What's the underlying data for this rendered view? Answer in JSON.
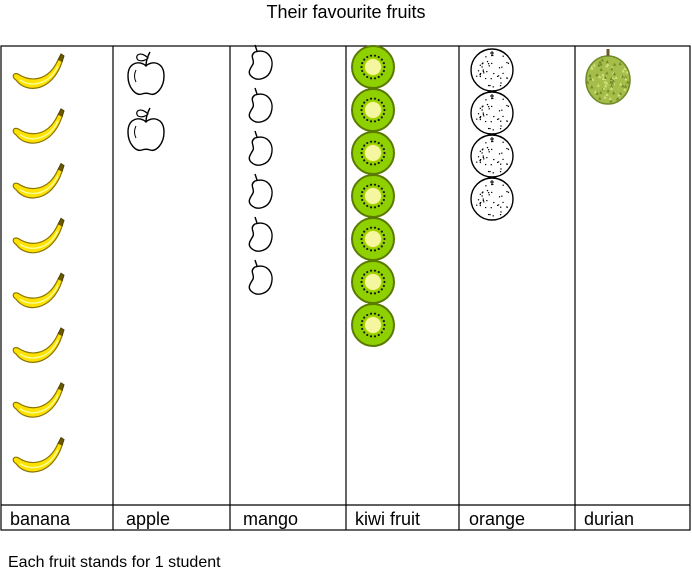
{
  "chart_data": {
    "type": "pictograph",
    "title": "Their favourite fruits",
    "categories": [
      "banana",
      "apple",
      "mango",
      "kiwi fruit",
      "orange",
      "durian"
    ],
    "values": [
      8,
      2,
      6,
      7,
      4,
      1
    ],
    "icons": [
      "banana-icon",
      "apple-icon",
      "mango-icon",
      "kiwi-icon",
      "orange-icon",
      "durian-icon"
    ],
    "key": "Each fruit stands for 1 student"
  },
  "colors": {
    "banana": "#ffe200",
    "banana_outline": "#8a7400",
    "kiwi_flesh": "#8fd100",
    "kiwi_core": "#f4f7a0",
    "kiwi_skin": "#5a7a00",
    "durian": "#a6bd4a",
    "durian_dark": "#6f8a2a",
    "line": "#000000"
  }
}
